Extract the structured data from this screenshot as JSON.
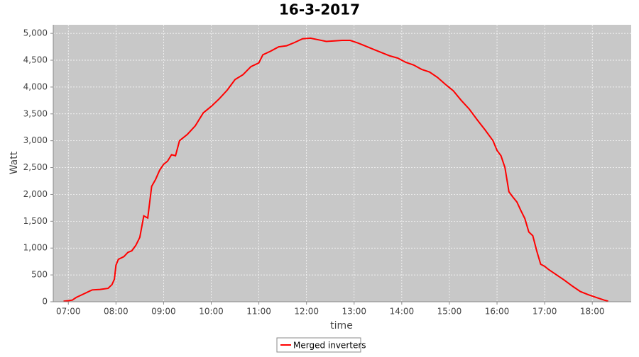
{
  "chart_data": {
    "type": "line",
    "title": "16-3-2017",
    "x_label": "time",
    "y_label": "Watt",
    "x": [
      "06:54",
      "07:00",
      "07:05",
      "07:10",
      "07:20",
      "07:30",
      "07:40",
      "07:50",
      "07:55",
      "07:58",
      "08:00",
      "08:03",
      "08:10",
      "08:15",
      "08:20",
      "08:25",
      "08:30",
      "08:35",
      "08:40",
      "08:45",
      "08:50",
      "08:55",
      "09:00",
      "09:05",
      "09:10",
      "09:15",
      "09:20",
      "09:30",
      "09:40",
      "09:50",
      "10:00",
      "10:10",
      "10:20",
      "10:30",
      "10:40",
      "10:50",
      "11:00",
      "11:05",
      "11:15",
      "11:25",
      "11:35",
      "11:45",
      "11:55",
      "12:05",
      "12:15",
      "12:25",
      "12:35",
      "12:45",
      "12:55",
      "13:05",
      "13:15",
      "13:25",
      "13:35",
      "13:45",
      "13:55",
      "14:05",
      "14:15",
      "14:25",
      "14:35",
      "14:45",
      "14:55",
      "15:05",
      "15:15",
      "15:25",
      "15:35",
      "15:45",
      "15:55",
      "16:00",
      "16:05",
      "16:10",
      "16:15",
      "16:20",
      "16:25",
      "16:30",
      "16:35",
      "16:40",
      "16:45",
      "16:50",
      "16:55",
      "17:00",
      "17:05",
      "17:15",
      "17:25",
      "17:35",
      "17:45",
      "17:55",
      "18:05",
      "18:15",
      "18:20"
    ],
    "series": [
      {
        "name": "Merged inverters",
        "color": "#ff0000",
        "values": [
          10,
          20,
          30,
          80,
          150,
          220,
          230,
          250,
          320,
          420,
          680,
          790,
          840,
          920,
          950,
          1050,
          1200,
          1600,
          1560,
          2150,
          2280,
          2450,
          2560,
          2620,
          2740,
          2720,
          3000,
          3120,
          3280,
          3520,
          3640,
          3780,
          3940,
          4140,
          4230,
          4380,
          4450,
          4600,
          4670,
          4750,
          4770,
          4830,
          4900,
          4910,
          4880,
          4850,
          4860,
          4870,
          4870,
          4820,
          4760,
          4700,
          4640,
          4580,
          4540,
          4460,
          4410,
          4330,
          4280,
          4180,
          4050,
          3930,
          3750,
          3590,
          3390,
          3200,
          3000,
          2820,
          2720,
          2500,
          2050,
          1950,
          1860,
          1700,
          1550,
          1300,
          1230,
          950,
          700,
          660,
          600,
          500,
          400,
          290,
          190,
          130,
          80,
          30,
          10
        ]
      }
    ],
    "xlim": [
      "06:41",
      "18:49"
    ],
    "xticks": [
      "07:00",
      "08:00",
      "09:00",
      "10:00",
      "11:00",
      "12:00",
      "13:00",
      "14:00",
      "15:00",
      "16:00",
      "17:00",
      "18:00"
    ],
    "ylim": [
      0,
      5160
    ],
    "yticks": [
      0,
      500,
      {
        "value": 1000,
        "label": "1,000"
      },
      {
        "value": 1500,
        "label": "1,500"
      },
      {
        "value": 2000,
        "label": "2,000"
      },
      {
        "value": 2500,
        "label": "2,500"
      },
      {
        "value": 3000,
        "label": "3,000"
      },
      {
        "value": 3500,
        "label": "3,500"
      },
      {
        "value": 4000,
        "label": "4,000"
      },
      {
        "value": 4500,
        "label": "4,500"
      },
      {
        "value": 5000,
        "label": "5,000"
      }
    ],
    "grid": true,
    "legend": "bottom"
  }
}
